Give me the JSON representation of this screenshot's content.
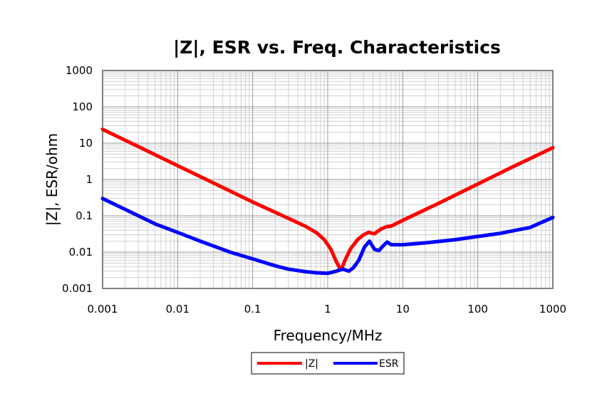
{
  "chart_data": {
    "type": "line",
    "title": "|Z|, ESR vs. Freq. Characteristics",
    "xlabel": "Frequency/MHz",
    "ylabel": "|Z|, ESR/ohm",
    "x_scale": "log",
    "y_scale": "log",
    "xlim": [
      0.001,
      1000
    ],
    "ylim": [
      0.001,
      1000
    ],
    "x_ticks": [
      0.001,
      0.01,
      0.1,
      1,
      10,
      100,
      1000
    ],
    "x_tick_labels": [
      "0.001",
      "0.01",
      "0.1",
      "1",
      "10",
      "100",
      "1000"
    ],
    "y_ticks": [
      0.001,
      0.01,
      0.1,
      1,
      10,
      100,
      1000
    ],
    "y_tick_labels": [
      "0.001",
      "0.01",
      "0.1",
      "1",
      "10",
      "100",
      "1000"
    ],
    "grid": true,
    "legend_position": "bottom-center",
    "series": [
      {
        "name": "|Z|",
        "color": "#ff0000",
        "points": [
          [
            0.001,
            24
          ],
          [
            0.003,
            8
          ],
          [
            0.01,
            2.4
          ],
          [
            0.03,
            0.8
          ],
          [
            0.1,
            0.24
          ],
          [
            0.3,
            0.085
          ],
          [
            0.5,
            0.052
          ],
          [
            0.7,
            0.035
          ],
          [
            0.9,
            0.022
          ],
          [
            1.1,
            0.012
          ],
          [
            1.3,
            0.0055
          ],
          [
            1.45,
            0.0036
          ],
          [
            1.55,
            0.0036
          ],
          [
            1.7,
            0.006
          ],
          [
            2.0,
            0.012
          ],
          [
            2.5,
            0.022
          ],
          [
            3.0,
            0.03
          ],
          [
            3.5,
            0.035
          ],
          [
            4.2,
            0.032
          ],
          [
            5.0,
            0.042
          ],
          [
            6.0,
            0.05
          ],
          [
            7.0,
            0.052
          ],
          [
            10,
            0.075
          ],
          [
            30,
            0.22
          ],
          [
            100,
            0.75
          ],
          [
            300,
            2.3
          ],
          [
            1000,
            7.5
          ]
        ]
      },
      {
        "name": "ESR",
        "color": "#0000ff",
        "points": [
          [
            0.001,
            0.3
          ],
          [
            0.002,
            0.15
          ],
          [
            0.005,
            0.06
          ],
          [
            0.01,
            0.035
          ],
          [
            0.02,
            0.02
          ],
          [
            0.05,
            0.01
          ],
          [
            0.1,
            0.0065
          ],
          [
            0.2,
            0.0042
          ],
          [
            0.3,
            0.0034
          ],
          [
            0.5,
            0.0029
          ],
          [
            0.7,
            0.0027
          ],
          [
            1.0,
            0.0026
          ],
          [
            1.3,
            0.003
          ],
          [
            1.6,
            0.0034
          ],
          [
            1.9,
            0.003
          ],
          [
            2.2,
            0.0037
          ],
          [
            2.6,
            0.006
          ],
          [
            3.1,
            0.014
          ],
          [
            3.6,
            0.02
          ],
          [
            4.2,
            0.012
          ],
          [
            4.8,
            0.011
          ],
          [
            5.5,
            0.015
          ],
          [
            6.2,
            0.019
          ],
          [
            7.0,
            0.016
          ],
          [
            10,
            0.016
          ],
          [
            20,
            0.018
          ],
          [
            50,
            0.022
          ],
          [
            100,
            0.027
          ],
          [
            200,
            0.033
          ],
          [
            500,
            0.048
          ],
          [
            1000,
            0.09
          ]
        ]
      }
    ]
  }
}
